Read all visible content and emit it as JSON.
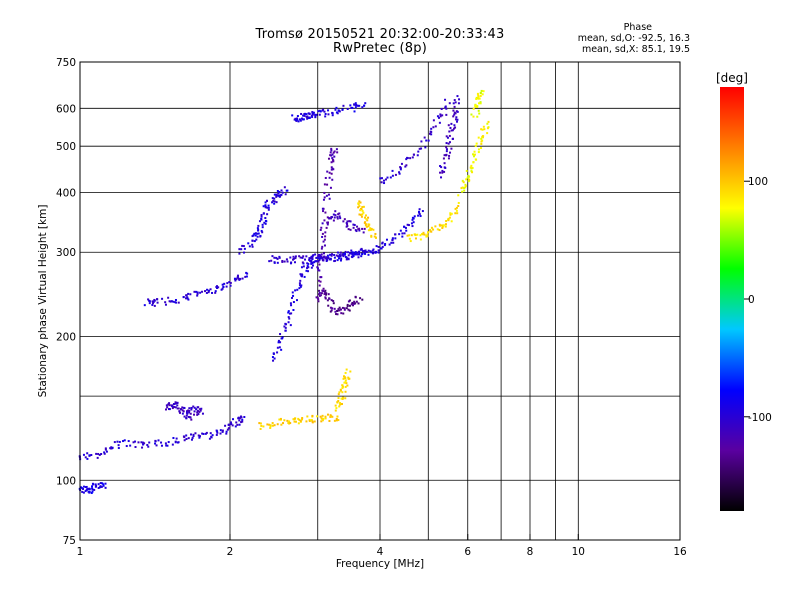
{
  "header": {
    "title_line1": "Tromsø 20150521 20:32:00-20:33:43",
    "title_line2": "RwPretec (8p)"
  },
  "phase_info": {
    "title": "Phase",
    "o_line": "mean, sd,O: -92.5, 16.3",
    "x_line": "mean, sd,X: 85.1, 19.5"
  },
  "colorbar": {
    "unit_label": "[deg]",
    "ticks": [
      100,
      0,
      -100
    ],
    "range": [
      -180,
      180
    ],
    "colors": [
      "#000000",
      "#5a00a0",
      "#0000ff",
      "#00c8ff",
      "#00ff00",
      "#ffff00",
      "#ff8000",
      "#ff0000"
    ]
  },
  "chart_data": {
    "type": "scatter",
    "title": "Tromsø 20150521 20:32:00-20:33:43",
    "subtitle": "RwPretec (8p)",
    "xlabel": "Frequency [MHz]",
    "ylabel": "Stationary phase Virtual Height [km]",
    "x_scale": "log",
    "y_scale": "log",
    "xlim": [
      1,
      16
    ],
    "ylim": [
      75,
      750
    ],
    "grid": true,
    "x_ticks": [
      1,
      2,
      4,
      6,
      8,
      10,
      16
    ],
    "x_tick_labels": [
      "1",
      "2",
      "4",
      "6",
      "8",
      "10",
      "16"
    ],
    "x_minor": [
      3,
      5,
      7,
      9
    ],
    "y_ticks": [
      75,
      100,
      200,
      300,
      400,
      500,
      600,
      750
    ],
    "y_tick_labels": [
      "75",
      "100",
      "200",
      "300",
      "400",
      "500",
      "600",
      "750"
    ],
    "y_minor": [
      150
    ],
    "color_scale": "phase [deg]",
    "traces": [
      {
        "x": [
          1.0,
          1.1,
          1.2,
          1.35,
          1.5,
          1.65,
          1.8,
          1.95,
          2.05,
          2.15
        ],
        "y": [
          112,
          113,
          120,
          118,
          120,
          123,
          124,
          127,
          132,
          135
        ],
        "phase": -100
      },
      {
        "x": [
          1.0,
          1.04,
          1.08,
          1.12
        ],
        "y": [
          96,
          95,
          97,
          98
        ],
        "phase": -90
      },
      {
        "x": [
          1.35,
          1.45,
          1.6,
          1.75,
          1.9,
          2.05,
          2.15
        ],
        "y": [
          235,
          236,
          240,
          246,
          252,
          262,
          268
        ],
        "phase": -100
      },
      {
        "x": [
          1.5,
          1.55,
          1.6,
          1.65,
          1.7,
          1.75
        ],
        "y": [
          142,
          145,
          140,
          136,
          142,
          138
        ],
        "phase": -110
      },
      {
        "x": [
          2.1,
          2.25,
          2.3,
          2.35,
          2.4,
          2.5,
          2.6
        ],
        "y": [
          300,
          320,
          335,
          360,
          380,
          395,
          405
        ],
        "phase": -95
      },
      {
        "x": [
          2.45,
          2.55,
          2.65,
          2.75,
          2.85,
          2.95,
          3.1,
          3.3,
          3.5,
          3.8
        ],
        "y": [
          178,
          200,
          225,
          255,
          280,
          290,
          290,
          292,
          295,
          298
        ],
        "phase": -95
      },
      {
        "x": [
          2.4,
          2.6,
          2.8,
          3.0,
          3.2,
          3.5
        ],
        "y": [
          290,
          288,
          290,
          292,
          294,
          296
        ],
        "phase": -105
      },
      {
        "x": [
          3.0,
          3.05,
          3.1,
          3.15,
          3.2,
          3.25
        ],
        "y": [
          250,
          300,
          350,
          420,
          470,
          500
        ],
        "phase": -120
      },
      {
        "x": [
          3.0,
          3.1,
          3.2,
          3.35,
          3.5,
          3.65
        ],
        "y": [
          240,
          250,
          230,
          225,
          235,
          240
        ],
        "phase": -135
      },
      {
        "x": [
          3.1,
          3.3,
          3.5,
          3.7
        ],
        "y": [
          350,
          360,
          340,
          330
        ],
        "phase": -115
      },
      {
        "x": [
          3.4,
          3.6,
          3.8,
          4.0,
          4.3,
          4.6,
          4.9
        ],
        "y": [
          296,
          298,
          302,
          305,
          320,
          345,
          370
        ],
        "phase": -95
      },
      {
        "x": [
          4.0,
          4.4,
          4.8,
          5.2,
          5.5
        ],
        "y": [
          420,
          450,
          490,
          560,
          620
        ],
        "phase": -105
      },
      {
        "x": [
          5.3,
          5.45,
          5.55,
          5.65,
          5.75
        ],
        "y": [
          430,
          480,
          530,
          580,
          630
        ],
        "phase": -110
      },
      {
        "x": [
          2.7,
          2.8,
          2.9,
          3.0,
          3.2,
          3.5,
          3.7
        ],
        "y": [
          570,
          575,
          580,
          585,
          590,
          600,
          610
        ],
        "phase": -95
      },
      {
        "x": [
          2.3,
          2.5,
          2.7,
          2.9,
          3.1,
          3.3
        ],
        "y": [
          130,
          132,
          133,
          134,
          135,
          135
        ],
        "phase": 95
      },
      {
        "x": [
          3.3,
          3.35,
          3.4,
          3.45
        ],
        "y": [
          140,
          150,
          160,
          170
        ],
        "phase": 90
      },
      {
        "x": [
          3.6,
          3.7,
          3.8,
          3.9
        ],
        "y": [
          380,
          360,
          340,
          320
        ],
        "phase": 95
      },
      {
        "x": [
          4.6,
          4.9,
          5.2,
          5.5,
          5.8
        ],
        "y": [
          320,
          325,
          335,
          350,
          380
        ],
        "phase": 90
      },
      {
        "x": [
          5.8,
          6.0,
          6.2,
          6.4,
          6.6
        ],
        "y": [
          400,
          430,
          470,
          520,
          560
        ],
        "phase": 80
      },
      {
        "x": [
          6.2,
          6.3,
          6.4
        ],
        "y": [
          580,
          620,
          650
        ],
        "phase": 75
      }
    ]
  }
}
